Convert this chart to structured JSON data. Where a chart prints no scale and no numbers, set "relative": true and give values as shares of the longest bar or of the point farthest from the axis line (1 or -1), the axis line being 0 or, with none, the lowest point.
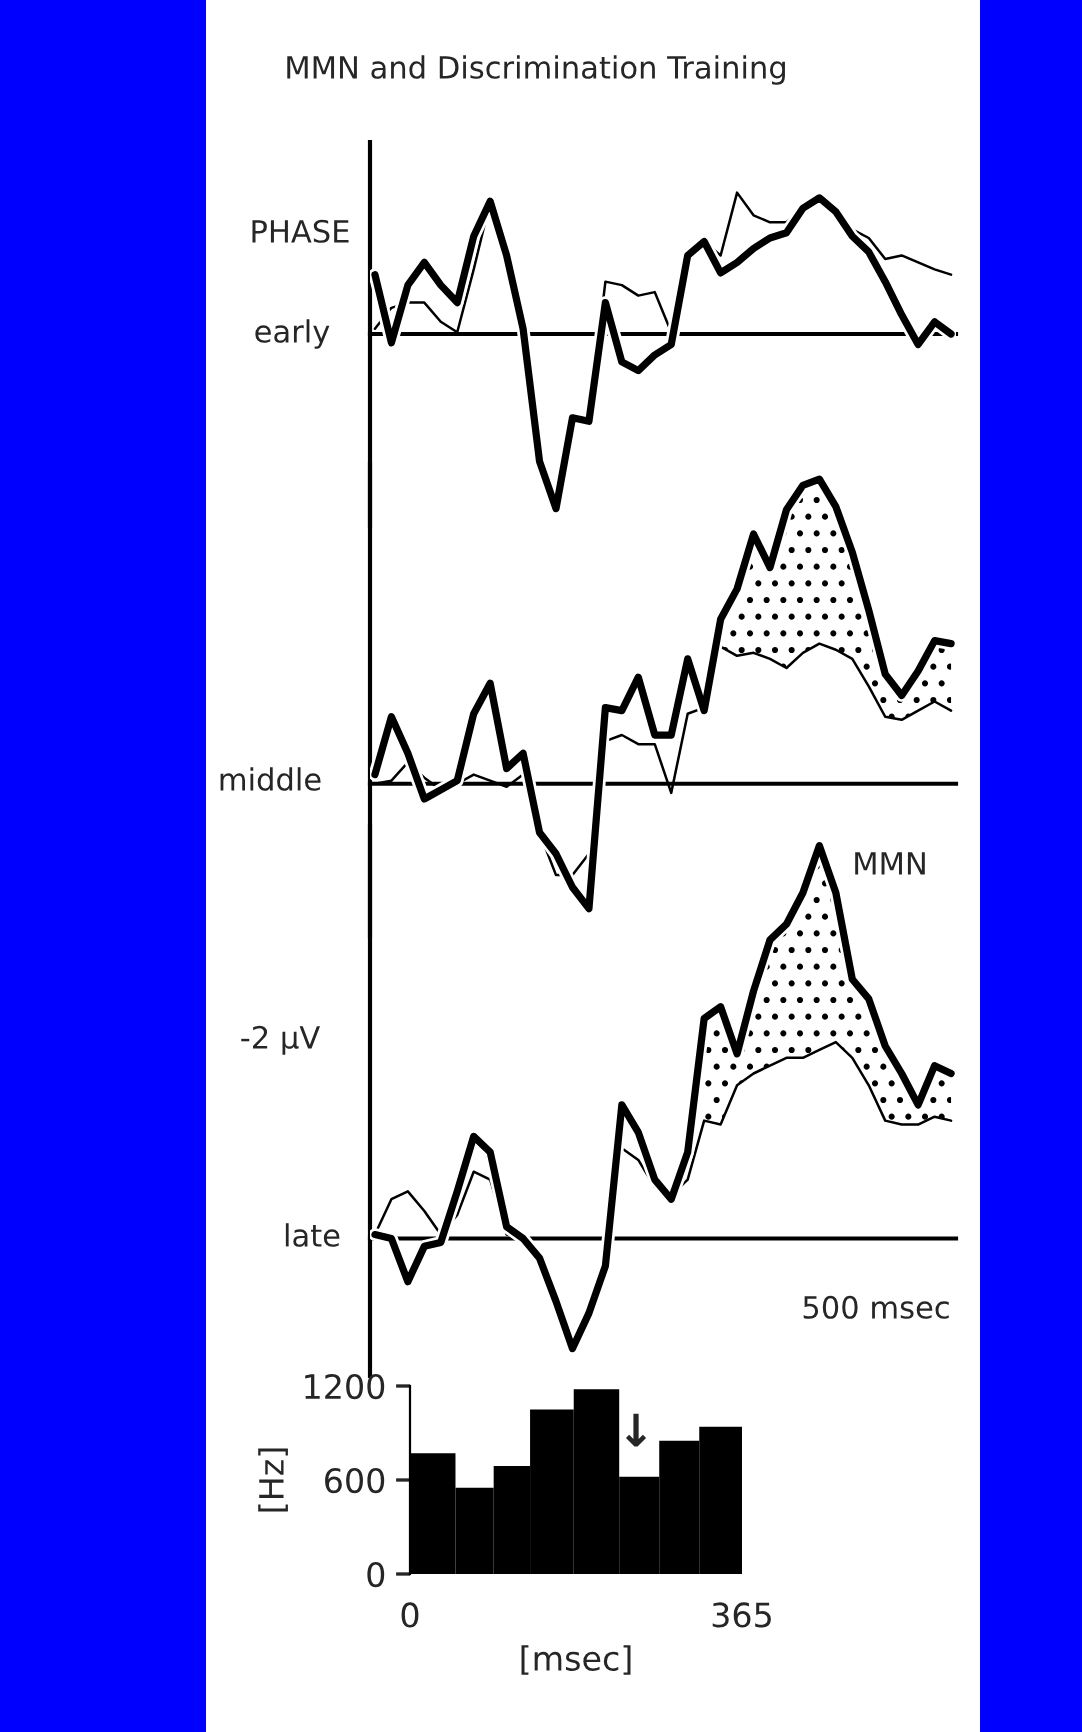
{
  "chart_data": [
    {
      "type": "line",
      "relative": true,
      "title": "MMN and Discrimination Training",
      "annotations": [
        "PHASE",
        "early"
      ],
      "categories": [
        null,
        null,
        null,
        null,
        null,
        null,
        null,
        null,
        null,
        null,
        null,
        null,
        null,
        null,
        null,
        null,
        null,
        null,
        null,
        null,
        null,
        null,
        null,
        null,
        null,
        null,
        null,
        null,
        null,
        null,
        null,
        null,
        null,
        null,
        null,
        null
      ],
      "series": [
        {
          "color": "#000000",
          "values": [
            0.34,
            -0.05,
            0.28,
            0.41,
            0.28,
            0.18,
            0.56,
            0.76,
            0.45,
            0.03,
            -0.73,
            -1,
            -0.48,
            -0.5,
            0.18,
            -0.16,
            -0.21,
            -0.12,
            -0.06,
            0.45,
            0.53,
            0.35,
            0.41,
            0.49,
            0.55,
            0.58,
            0.72,
            0.78,
            0.7,
            0.56,
            0.47,
            0.3,
            0.11,
            -0.06,
            0.07,
            0
          ]
        },
        {
          "color": "#000000",
          "values": [
            0.03,
            0.15,
            0.18,
            0.18,
            0.07,
            0.01,
            0.37,
            0.76,
            0.45,
            0.03,
            -0.73,
            -0.98,
            -0.48,
            -0.5,
            0.3,
            0.28,
            0.22,
            0.24,
            0.01,
            0.41,
            0.53,
            0.45,
            0.81,
            0.68,
            0.64,
            0.64,
            0.72,
            0.78,
            0.68,
            0.6,
            0.55,
            0.43,
            0.45,
            0.41,
            0.37,
            0.34
          ]
        }
      ]
    },
    {
      "type": "line",
      "relative": true,
      "annotations": [
        "middle"
      ],
      "categories": [
        null,
        null,
        null,
        null,
        null,
        null,
        null,
        null,
        null,
        null,
        null,
        null,
        null,
        null,
        null,
        null,
        null,
        null,
        null,
        null,
        null,
        null,
        null,
        null,
        null,
        null,
        null,
        null,
        null,
        null,
        null,
        null,
        null,
        null,
        null,
        null
      ],
      "series": [
        {
          "color": "#000000",
          "values": [
            0.03,
            0.22,
            0.1,
            -0.05,
            -0.02,
            0.01,
            0.23,
            0.33,
            0.05,
            0.1,
            -0.16,
            -0.23,
            -0.34,
            -0.41,
            0.25,
            0.24,
            0.35,
            0.16,
            0.16,
            0.41,
            0.24,
            0.54,
            0.64,
            0.82,
            0.71,
            0.9,
            0.98,
            1,
            0.91,
            0.76,
            0.57,
            0.36,
            0.29,
            0.37,
            0.47,
            0.46
          ],
          "lower": [
            null,
            null,
            null,
            null,
            null,
            null,
            null,
            null,
            null,
            null,
            null,
            null,
            null,
            null,
            null,
            null,
            null,
            null,
            null,
            null,
            null,
            0.45,
            0.42,
            0.43,
            0.41,
            0.38,
            0.43,
            0.46,
            0.44,
            0.41,
            0.32,
            0.22,
            0.21,
            0.24,
            0.27,
            0.24
          ],
          "upper": [
            null,
            null,
            null,
            null,
            null,
            null,
            null,
            null,
            null,
            null,
            null,
            null,
            null,
            null,
            null,
            null,
            null,
            null,
            null,
            null,
            null,
            0.54,
            0.64,
            0.82,
            0.71,
            0.9,
            0.98,
            1,
            0.91,
            0.76,
            0.57,
            0.36,
            0.29,
            0.37,
            0.47,
            0.46
          ]
        },
        {
          "color": "#000000",
          "values": [
            0,
            0.01,
            0.07,
            0.02,
            -0.02,
            0,
            0.03,
            0.01,
            -0.01,
            0.03,
            -0.16,
            -0.3,
            -0.3,
            -0.23,
            0.14,
            0.16,
            0.13,
            0.13,
            -0.03,
            0.23,
            0.25,
            0.45,
            0.42,
            0.43,
            0.41,
            0.38,
            0.43,
            0.46,
            0.44,
            0.41,
            0.32,
            0.22,
            0.21,
            0.24,
            0.27,
            0.24
          ]
        }
      ]
    },
    {
      "type": "line",
      "relative": true,
      "annotations": [
        "-2 µV",
        "MMN",
        "late",
        "500 msec"
      ],
      "categories": [
        null,
        null,
        null,
        null,
        null,
        null,
        null,
        null,
        null,
        null,
        null,
        null,
        null,
        null,
        null,
        null,
        null,
        null,
        null,
        null,
        null,
        null,
        null,
        null,
        null,
        null,
        null,
        null,
        null,
        null,
        null,
        null,
        null,
        null,
        null,
        null
      ],
      "series": [
        {
          "color": "#000000",
          "values": [
            0.01,
            0,
            -0.11,
            -0.02,
            -0.01,
            0.12,
            0.26,
            0.22,
            0.03,
            0,
            -0.05,
            -0.16,
            -0.28,
            -0.19,
            -0.07,
            0.34,
            0.27,
            0.15,
            0.1,
            0.22,
            0.56,
            0.59,
            0.47,
            0.63,
            0.76,
            0.8,
            0.88,
            1,
            0.88,
            0.66,
            0.61,
            0.49,
            0.42,
            0.34,
            0.44,
            0.42
          ],
          "lower": [
            null,
            null,
            null,
            null,
            null,
            null,
            null,
            null,
            null,
            null,
            null,
            null,
            null,
            null,
            null,
            null,
            null,
            null,
            null,
            null,
            0.3,
            0.29,
            0.39,
            0.42,
            0.44,
            0.46,
            0.46,
            0.48,
            0.5,
            0.46,
            0.39,
            0.3,
            0.29,
            0.29,
            0.31,
            0.3
          ],
          "upper": [
            null,
            null,
            null,
            null,
            null,
            null,
            null,
            null,
            null,
            null,
            null,
            null,
            null,
            null,
            null,
            null,
            null,
            null,
            null,
            null,
            0.56,
            0.59,
            0.47,
            0.63,
            0.76,
            0.8,
            0.88,
            1,
            0.88,
            0.66,
            0.61,
            0.49,
            0.42,
            0.34,
            0.44,
            0.42
          ]
        },
        {
          "color": "#000000",
          "values": [
            0.01,
            0.1,
            0.12,
            0.07,
            0.01,
            0.06,
            0.17,
            0.15,
            0.01,
            0,
            -0.05,
            -0.16,
            -0.28,
            -0.19,
            -0.07,
            0.23,
            0.2,
            0.13,
            0.11,
            0.15,
            0.3,
            0.29,
            0.39,
            0.42,
            0.44,
            0.46,
            0.46,
            0.48,
            0.5,
            0.46,
            0.39,
            0.3,
            0.29,
            0.29,
            0.31,
            0.3
          ]
        }
      ]
    },
    {
      "type": "histogram",
      "bins": [
        0,
        50,
        92,
        132,
        180,
        230,
        274,
        318,
        365
      ],
      "values": [
        770,
        550,
        690,
        1050,
        1180,
        620,
        850,
        940
      ],
      "color": "#000000",
      "xlim": [
        0,
        365
      ],
      "xticks": [
        0,
        365
      ],
      "ylim": [
        0,
        1200
      ],
      "yticks": [
        0,
        600,
        1200
      ],
      "xlabel": "[msec]",
      "ylabel": "[Hz]",
      "annotations": [
        "↓"
      ]
    }
  ]
}
